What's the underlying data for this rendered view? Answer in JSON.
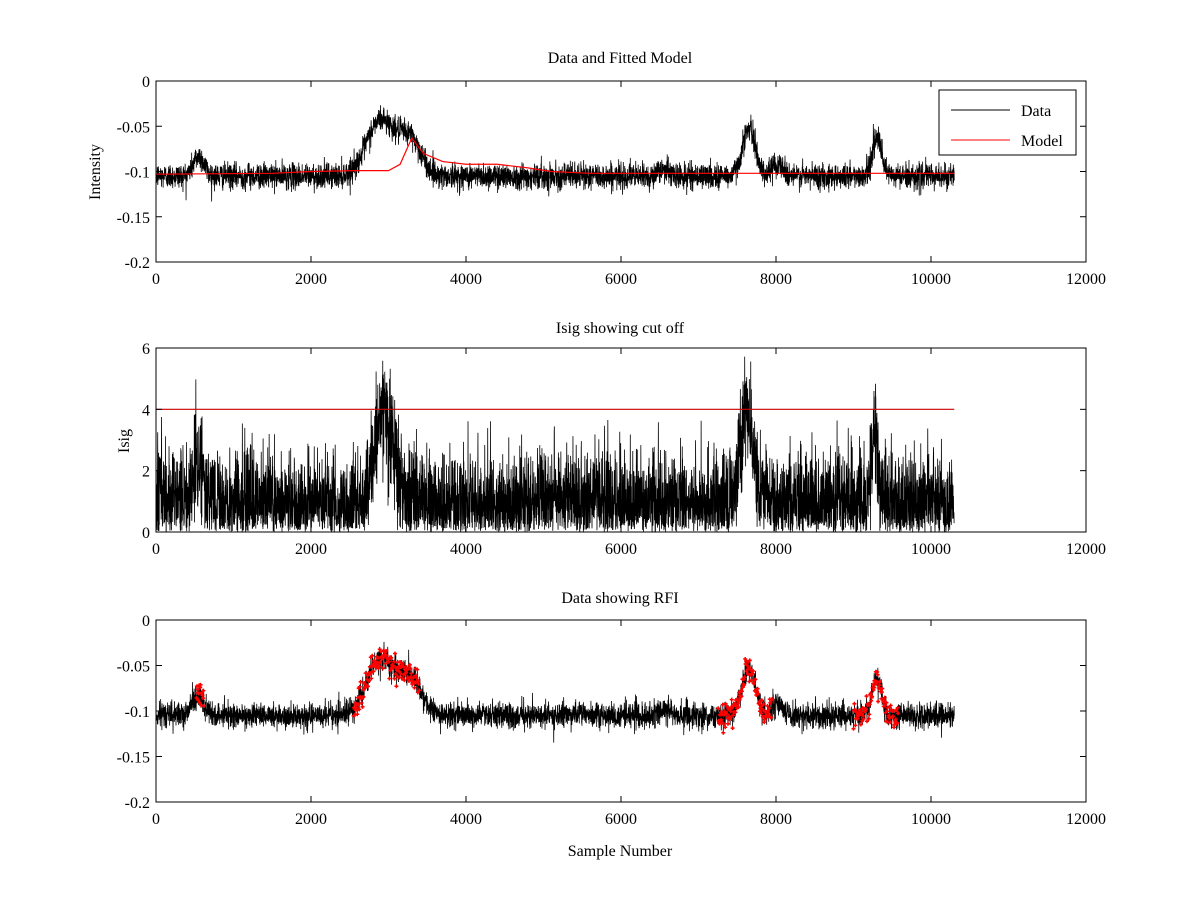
{
  "colors": {
    "data": "#000000",
    "model": "#ff0000",
    "cutoff": "#cc0000",
    "rfi": "#ff0000",
    "background": "#ffffff"
  },
  "chart_data": [
    {
      "type": "line",
      "title": "Data and Fitted Model",
      "xlabel": "",
      "ylabel": "Intensity",
      "xlim": [
        0,
        12000
      ],
      "ylim": [
        -0.2,
        0
      ],
      "xticks": [
        0,
        2000,
        4000,
        6000,
        8000,
        10000,
        12000
      ],
      "xtick_labels": [
        "0",
        "2000",
        "4000",
        "6000",
        "8000",
        "10000",
        "12000"
      ],
      "yticks": [
        0,
        -0.05,
        -0.1,
        -0.15,
        -0.2
      ],
      "ytick_labels": [
        "0",
        "-0.05",
        "-0.1",
        "-0.15",
        "-0.2"
      ],
      "legend": {
        "position": "top-right",
        "entries": [
          "Data",
          "Model"
        ]
      },
      "series": [
        {
          "name": "Data",
          "color": "#000000",
          "style": "noisy-line",
          "x_range": [
            0,
            10300
          ],
          "baseline": -0.105,
          "noise": 0.007,
          "features": [
            {
              "center": 550,
              "width": 70,
              "amplitude": 0.022
            },
            {
              "center": 2900,
              "width": 180,
              "amplitude": 0.062
            },
            {
              "center": 3280,
              "width": 140,
              "amplitude": 0.04
            },
            {
              "center": 6550,
              "width": 60,
              "amplitude": 0.008
            },
            {
              "center": 7650,
              "width": 85,
              "amplitude": 0.052
            },
            {
              "center": 8020,
              "width": 70,
              "amplitude": 0.014
            },
            {
              "center": 9300,
              "width": 60,
              "amplitude": 0.042
            }
          ]
        },
        {
          "name": "Model",
          "color": "#ff0000",
          "style": "line",
          "x": [
            0,
            1500,
            2000,
            2600,
            3000,
            3150,
            3300,
            3450,
            3700,
            4000,
            4400,
            4800,
            5100,
            5600,
            10300
          ],
          "y": [
            -0.103,
            -0.102,
            -0.1,
            -0.099,
            -0.099,
            -0.092,
            -0.063,
            -0.08,
            -0.089,
            -0.092,
            -0.092,
            -0.096,
            -0.1,
            -0.102,
            -0.102
          ]
        }
      ]
    },
    {
      "type": "line",
      "title": "Isig showing cut off",
      "xlabel": "",
      "ylabel": "Isig",
      "xlim": [
        0,
        12000
      ],
      "ylim": [
        0,
        6
      ],
      "xticks": [
        0,
        2000,
        4000,
        6000,
        8000,
        10000,
        12000
      ],
      "xtick_labels": [
        "0",
        "2000",
        "4000",
        "6000",
        "8000",
        "10000",
        "12000"
      ],
      "yticks": [
        0,
        2,
        4,
        6
      ],
      "ytick_labels": [
        "0",
        "2",
        "4",
        "6"
      ],
      "series": [
        {
          "color": "#000000",
          "style": "noisy-bars",
          "x_range": [
            0,
            10300
          ],
          "level": 0.9,
          "noise": 0.9,
          "features": [
            {
              "center": 550,
              "width": 60,
              "amplitude": 1.4
            },
            {
              "center": 2950,
              "width": 120,
              "amplitude": 2.9
            },
            {
              "center": 7620,
              "width": 80,
              "amplitude": 3.2
            },
            {
              "center": 9280,
              "width": 40,
              "amplitude": 2.4
            }
          ]
        },
        {
          "color": "#cc0000",
          "style": "line",
          "x": [
            0,
            10300
          ],
          "y": [
            4,
            4
          ]
        }
      ]
    },
    {
      "type": "line",
      "title": "Data showing RFI",
      "xlabel": "Sample Number",
      "ylabel": "",
      "xlim": [
        0,
        12000
      ],
      "ylim": [
        -0.2,
        0
      ],
      "xticks": [
        0,
        2000,
        4000,
        6000,
        8000,
        10000,
        12000
      ],
      "xtick_labels": [
        "0",
        "2000",
        "4000",
        "6000",
        "8000",
        "10000",
        "12000"
      ],
      "yticks": [
        0,
        -0.05,
        -0.1,
        -0.15,
        -0.2
      ],
      "ytick_labels": [
        "0",
        "-0.05",
        "-0.1",
        "-0.15",
        "-0.2"
      ],
      "series": [
        {
          "color": "#000000",
          "style": "noisy-line",
          "x_range": [
            0,
            10300
          ],
          "baseline": -0.105,
          "noise": 0.007,
          "features": [
            {
              "center": 550,
              "width": 70,
              "amplitude": 0.022
            },
            {
              "center": 2900,
              "width": 180,
              "amplitude": 0.062
            },
            {
              "center": 3280,
              "width": 140,
              "amplitude": 0.04
            },
            {
              "center": 6550,
              "width": 60,
              "amplitude": 0.008
            },
            {
              "center": 7650,
              "width": 85,
              "amplitude": 0.052
            },
            {
              "center": 8020,
              "width": 70,
              "amplitude": 0.014
            },
            {
              "center": 9300,
              "width": 60,
              "amplitude": 0.042
            }
          ]
        },
        {
          "color": "#ff0000",
          "style": "markers",
          "flagged_ranges": [
            [
              520,
              620
            ],
            [
              2550,
              3400
            ],
            [
              7250,
              7950
            ],
            [
              9000,
              9580
            ]
          ]
        }
      ]
    }
  ]
}
